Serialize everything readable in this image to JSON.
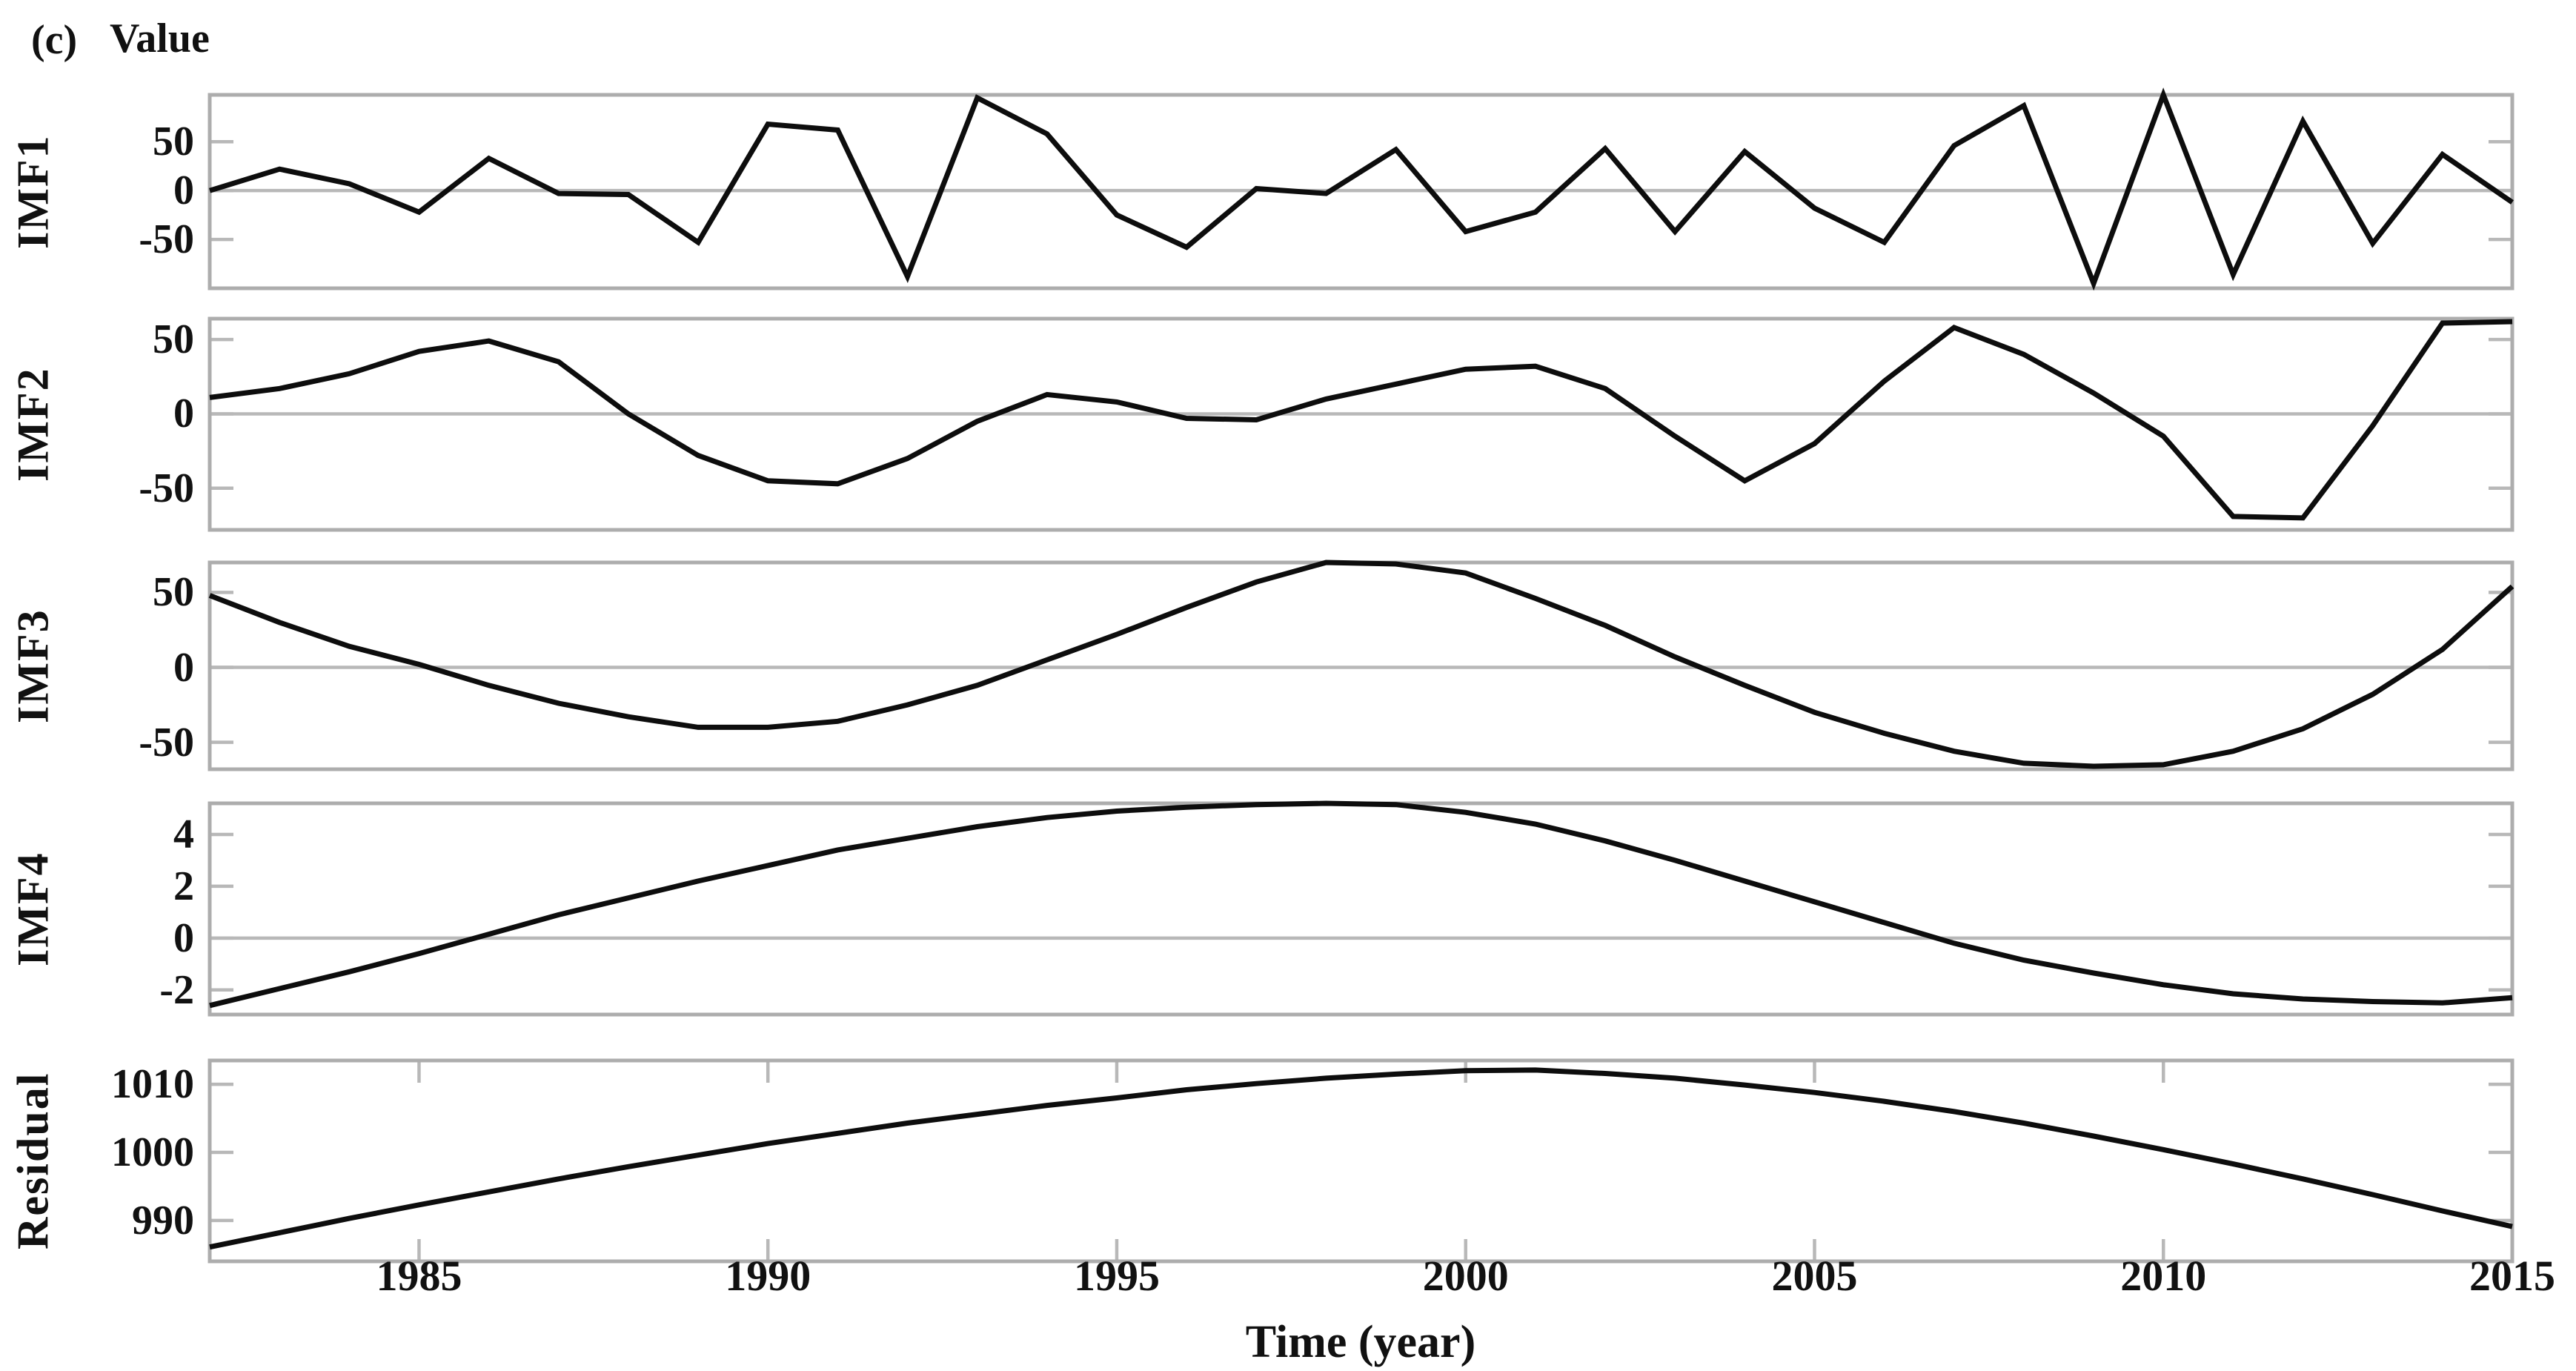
{
  "header": {
    "panel_tag": "(c)",
    "axis_title": "Value"
  },
  "x_axis": {
    "label": "Time (year)",
    "tick_years": [
      1985,
      1990,
      1995,
      2000,
      2005,
      2010,
      2015
    ],
    "range": [
      1982,
      2015
    ]
  },
  "colors": {
    "curve": "#0d0d0d",
    "frame": "#adadad",
    "grid": "#b8b8b8"
  },
  "chart_data": {
    "type": "line",
    "title": "",
    "xlabel": "Time (year)",
    "ylabel": "Value",
    "legend": "none",
    "x": [
      1982,
      1983,
      1984,
      1985,
      1986,
      1987,
      1988,
      1989,
      1990,
      1991,
      1992,
      1993,
      1994,
      1995,
      1996,
      1997,
      1998,
      1999,
      2000,
      2001,
      2002,
      2003,
      2004,
      2005,
      2006,
      2007,
      2008,
      2009,
      2010,
      2011,
      2012,
      2013,
      2014,
      2015
    ],
    "panels": [
      {
        "name": "IMF1",
        "values": [
          0,
          22,
          7,
          -22,
          33,
          -3,
          -4,
          -53,
          68,
          62,
          -88,
          95,
          58,
          -25,
          -58,
          2,
          -3,
          42,
          -42,
          -22,
          43,
          -42,
          40,
          -18,
          -53,
          46,
          87,
          -95,
          98,
          -86,
          71,
          -54,
          37,
          -12
        ],
        "ylim": [
          -100,
          98
        ],
        "yticks": [
          50,
          0,
          -50
        ],
        "grid_at": [
          0
        ],
        "x_ticks_on_frame": false
      },
      {
        "name": "IMF2",
        "values": [
          11,
          17,
          27,
          42,
          49,
          35,
          0,
          -28,
          -45,
          -47,
          -30,
          -5,
          13,
          8,
          -3,
          -4,
          10,
          20,
          30,
          32,
          17,
          -15,
          -45,
          -20,
          22,
          58,
          40,
          14,
          -15,
          -69,
          -70,
          -8,
          61,
          62
        ],
        "ylim": [
          -78,
          64
        ],
        "yticks": [
          50,
          0,
          -50
        ],
        "grid_at": [
          0
        ],
        "x_ticks_on_frame": false
      },
      {
        "name": "IMF3",
        "values": [
          48,
          30,
          14,
          2,
          -12,
          -24,
          -33,
          -40,
          -40,
          -36,
          -25,
          -12,
          5,
          22,
          40,
          57,
          70,
          69,
          63,
          46,
          28,
          7,
          -12,
          -30,
          -44,
          -56,
          -64,
          -66,
          -65,
          -56,
          -41,
          -18,
          12,
          54
        ],
        "ylim": [
          -68,
          70
        ],
        "yticks": [
          50,
          0,
          -50
        ],
        "grid_at": [
          0
        ],
        "x_ticks_on_frame": false
      },
      {
        "name": "IMF4",
        "values": [
          -2.6,
          -1.95,
          -1.3,
          -0.6,
          0.15,
          0.9,
          1.55,
          2.2,
          2.8,
          3.4,
          3.85,
          4.3,
          4.65,
          4.9,
          5.05,
          5.15,
          5.2,
          5.15,
          4.85,
          4.4,
          3.75,
          3.0,
          2.2,
          1.4,
          0.6,
          -0.2,
          -0.85,
          -1.35,
          -1.8,
          -2.15,
          -2.35,
          -2.45,
          -2.5,
          -2.3
        ],
        "ylim": [
          -2.95,
          5.2
        ],
        "yticks": [
          4,
          2,
          0,
          -2
        ],
        "grid_at": [
          0
        ],
        "x_ticks_on_frame": false
      },
      {
        "name": "Residual",
        "values": [
          986.1,
          988.2,
          990.3,
          992.3,
          994.2,
          996.1,
          997.9,
          999.6,
          1001.3,
          1002.8,
          1004.3,
          1005.6,
          1006.9,
          1008,
          1009.2,
          1010.1,
          1010.9,
          1011.5,
          1012,
          1012.1,
          1011.6,
          1010.9,
          1009.9,
          1008.8,
          1007.5,
          1006,
          1004.3,
          1002.4,
          1000.4,
          998.3,
          996.1,
          993.8,
          991.4,
          989.1
        ],
        "ylim": [
          984,
          1013.5
        ],
        "yticks": [
          1010,
          1000,
          990
        ],
        "grid_at": [],
        "x_ticks_on_frame": true
      }
    ]
  }
}
